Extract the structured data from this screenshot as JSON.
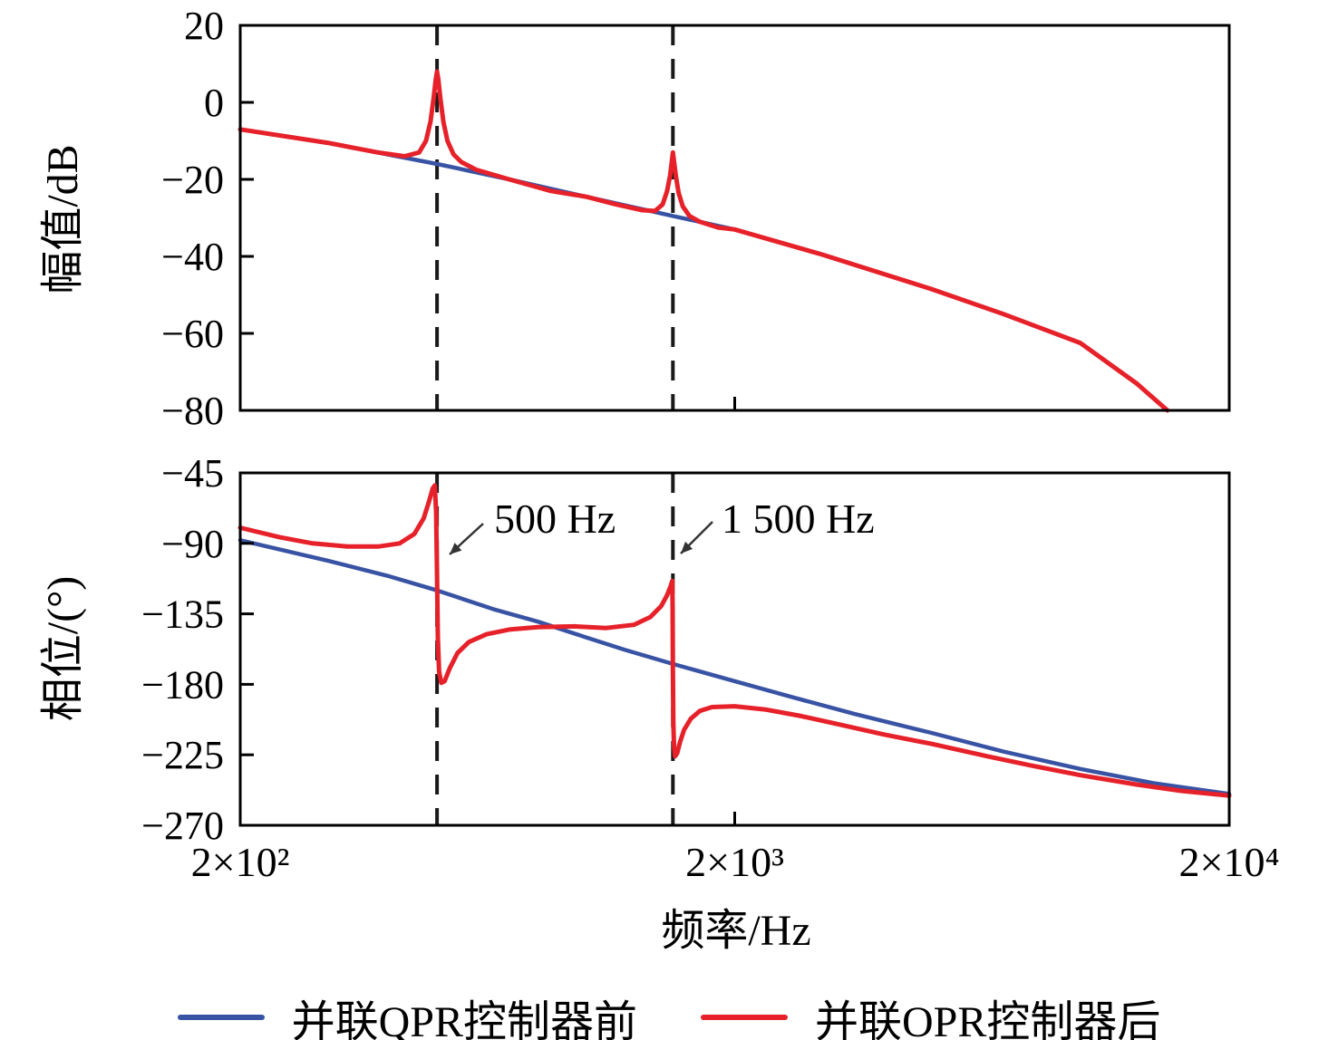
{
  "figure": {
    "xlabel": "频率/Hz",
    "annotations": [
      {
        "text": "500 Hz"
      },
      {
        "text": "1 500 Hz"
      }
    ],
    "legend": [
      {
        "label": "并联QPR控制器前",
        "color": "#3953a4"
      },
      {
        "label": "并联OPR控制器后",
        "color": "#e62129"
      }
    ]
  },
  "chart_data": [
    {
      "type": "line",
      "title": "",
      "xlabel": "频率/Hz",
      "ylabel": "幅值/dB",
      "xscale": "log",
      "xlim": [
        200,
        20000
      ],
      "ylim": [
        -80,
        20
      ],
      "yticks": [
        20,
        0,
        -20,
        -40,
        -60,
        -80
      ],
      "ytick_labels": [
        "20",
        "0",
        "−20",
        "−40",
        "−60",
        "−80"
      ],
      "xticks": [
        200,
        2000,
        20000
      ],
      "xtick_labels": [
        "2×10²",
        "2×10³",
        "2×10⁴"
      ],
      "grid": false,
      "legend_position": "bottom",
      "vlines": [
        500,
        1500
      ],
      "series": [
        {
          "name": "并联QPR控制器前",
          "color": "#3953a4",
          "points": [
            [
              200,
              -7
            ],
            [
              300,
              -10.5
            ],
            [
              500,
              -16
            ],
            [
              700,
              -20
            ],
            [
              1000,
              -24.5
            ],
            [
              1500,
              -29.5
            ],
            [
              2000,
              -33
            ],
            [
              3000,
              -39.5
            ],
            [
              5000,
              -48.5
            ],
            [
              7000,
              -55
            ],
            [
              10000,
              -62.5
            ],
            [
              13000,
              -73
            ],
            [
              15000,
              -80
            ]
          ]
        },
        {
          "name": "并联OPR控制器后",
          "color": "#e62129",
          "points": [
            [
              200,
              -7
            ],
            [
              300,
              -10.5
            ],
            [
              380,
              -13
            ],
            [
              430,
              -14
            ],
            [
              460,
              -13
            ],
            [
              475,
              -10
            ],
            [
              485,
              -5
            ],
            [
              492,
              1
            ],
            [
              497,
              6
            ],
            [
              500,
              8
            ],
            [
              503,
              6
            ],
            [
              508,
              1
            ],
            [
              515,
              -5
            ],
            [
              525,
              -10
            ],
            [
              540,
              -13.5
            ],
            [
              560,
              -15.5
            ],
            [
              600,
              -17.5
            ],
            [
              700,
              -20
            ],
            [
              850,
              -23
            ],
            [
              1000,
              -24.5
            ],
            [
              1150,
              -26.5
            ],
            [
              1300,
              -28
            ],
            [
              1380,
              -28.2
            ],
            [
              1430,
              -26.5
            ],
            [
              1460,
              -23
            ],
            [
              1480,
              -19
            ],
            [
              1490,
              -16
            ],
            [
              1500,
              -13
            ],
            [
              1510,
              -16
            ],
            [
              1520,
              -19
            ],
            [
              1540,
              -23.5
            ],
            [
              1570,
              -27
            ],
            [
              1620,
              -29.5
            ],
            [
              1700,
              -31
            ],
            [
              1850,
              -32.5
            ],
            [
              2000,
              -33
            ],
            [
              3000,
              -39.5
            ],
            [
              5000,
              -48.5
            ],
            [
              7000,
              -55
            ],
            [
              10000,
              -62.5
            ],
            [
              13000,
              -73
            ],
            [
              15000,
              -80
            ]
          ]
        }
      ]
    },
    {
      "type": "line",
      "title": "",
      "xlabel": "频率/Hz",
      "ylabel": "相位/(°)",
      "xscale": "log",
      "xlim": [
        200,
        20000
      ],
      "ylim": [
        -270,
        -45
      ],
      "yticks": [
        -45,
        -90,
        -135,
        -180,
        -225,
        -270
      ],
      "ytick_labels": [
        "−45",
        "−90",
        "−135",
        "−180",
        "−225",
        "−270"
      ],
      "xticks": [
        200,
        2000,
        20000
      ],
      "xtick_labels": [
        "2×10²",
        "2×10³",
        "2×10⁴"
      ],
      "grid": false,
      "legend_position": "bottom",
      "vlines": [
        500,
        1500
      ],
      "series": [
        {
          "name": "并联QPR控制器前",
          "color": "#3953a4",
          "points": [
            [
              200,
              -88
            ],
            [
              300,
              -101
            ],
            [
              400,
              -111
            ],
            [
              500,
              -120
            ],
            [
              650,
              -132
            ],
            [
              800,
              -140
            ],
            [
              1000,
              -150
            ],
            [
              1200,
              -158
            ],
            [
              1500,
              -167
            ],
            [
              2000,
              -178
            ],
            [
              2600,
              -188
            ],
            [
              3500,
              -199
            ],
            [
              5000,
              -211
            ],
            [
              7000,
              -223
            ],
            [
              10000,
              -234
            ],
            [
              14000,
              -243
            ],
            [
              20000,
              -250
            ]
          ]
        },
        {
          "name": "并联OPR控制器后",
          "color": "#e62129",
          "points": [
            [
              200,
              -80
            ],
            [
              240,
              -86
            ],
            [
              280,
              -90
            ],
            [
              330,
              -92
            ],
            [
              380,
              -92
            ],
            [
              420,
              -90
            ],
            [
              450,
              -84
            ],
            [
              470,
              -74
            ],
            [
              482,
              -63
            ],
            [
              490,
              -55
            ],
            [
              495,
              -53
            ],
            [
              498,
              -70
            ],
            [
              500,
              -110
            ],
            [
              502,
              -150
            ],
            [
              505,
              -172
            ],
            [
              510,
              -179
            ],
            [
              518,
              -178
            ],
            [
              530,
              -170
            ],
            [
              550,
              -160
            ],
            [
              580,
              -153
            ],
            [
              630,
              -148
            ],
            [
              700,
              -145
            ],
            [
              800,
              -143.5
            ],
            [
              950,
              -143
            ],
            [
              1100,
              -144
            ],
            [
              1250,
              -142
            ],
            [
              1350,
              -137
            ],
            [
              1420,
              -130
            ],
            [
              1460,
              -123
            ],
            [
              1485,
              -117
            ],
            [
              1495,
              -114
            ],
            [
              1498,
              -130
            ],
            [
              1500,
              -170
            ],
            [
              1503,
              -205
            ],
            [
              1508,
              -220
            ],
            [
              1515,
              -226
            ],
            [
              1530,
              -224
            ],
            [
              1550,
              -217
            ],
            [
              1580,
              -209
            ],
            [
              1630,
              -202
            ],
            [
              1700,
              -197
            ],
            [
              1800,
              -194.5
            ],
            [
              2000,
              -194
            ],
            [
              2300,
              -196
            ],
            [
              2700,
              -200
            ],
            [
              3300,
              -206
            ],
            [
              4000,
              -212
            ],
            [
              5000,
              -218
            ],
            [
              6500,
              -226
            ],
            [
              8000,
              -232
            ],
            [
              10000,
              -238
            ],
            [
              13000,
              -244
            ],
            [
              16000,
              -248
            ],
            [
              20000,
              -251
            ]
          ]
        }
      ]
    }
  ]
}
